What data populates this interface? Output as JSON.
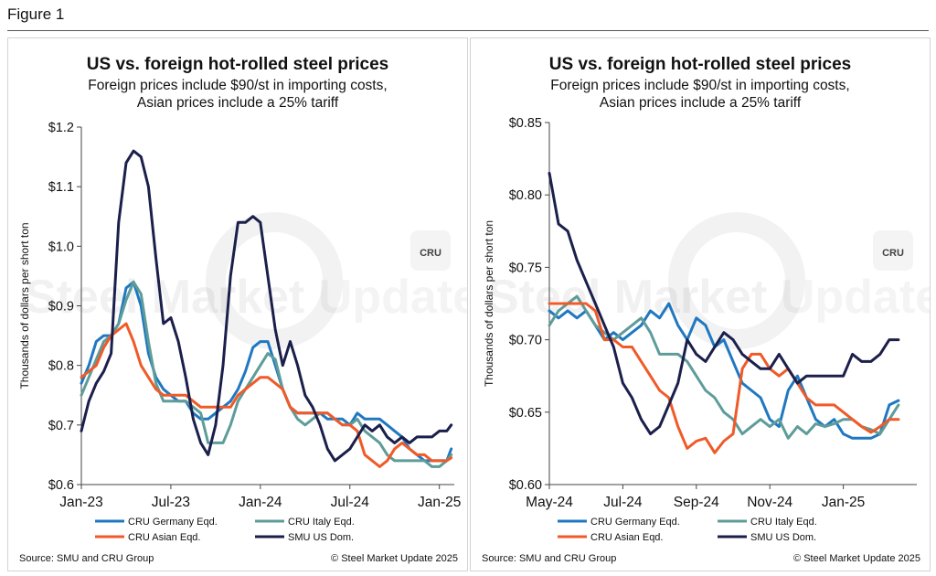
{
  "figure_label": "Figure 1",
  "watermark": {
    "bold": "Steel Market",
    "light": "Update",
    "logo": "CRU"
  },
  "colors": {
    "germany": "#1f78c1",
    "italy": "#5e9c9a",
    "asian": "#f05a28",
    "us": "#1b1f4b"
  },
  "chart_data": [
    {
      "type": "line",
      "title": "US vs. foreign hot-rolled steel prices",
      "subtitle": [
        "Foreign prices include $90/st in importing costs,",
        "Asian prices include a 25% tariff"
      ],
      "ylabel": "Thousands of dollars per short ton",
      "xlabel": "",
      "ylim": [
        0.6,
        1.2
      ],
      "yticks": [
        0.6,
        0.7,
        0.8,
        0.9,
        1.0,
        1.1,
        1.2
      ],
      "ytick_labels": [
        "$0.6",
        "$0.7",
        "$0.8",
        "$0.9",
        "$1.0",
        "$1.1",
        "$1.2"
      ],
      "xlim": [
        0,
        25
      ],
      "xticks": [
        0,
        6,
        12,
        18,
        24
      ],
      "xtick_labels": [
        "Jan-23",
        "Jul-23",
        "Jan-24",
        "Jul-24",
        "Jan-25"
      ],
      "legend_placement": "bottom",
      "source": "Source: SMU and CRU Group",
      "copyright": "© Steel Market Update 2025",
      "series": [
        {
          "name": "CRU Germany Eqd.",
          "key": "germany",
          "x": [
            0,
            0.5,
            1,
            1.5,
            2,
            2.5,
            3,
            3.5,
            4,
            4.5,
            5,
            5.5,
            6,
            6.5,
            7,
            7.5,
            8,
            8.5,
            9,
            9.5,
            10,
            10.5,
            11,
            11.5,
            12,
            12.5,
            13,
            13.5,
            14,
            14.5,
            15,
            15.5,
            16,
            16.5,
            17,
            17.5,
            18,
            18.5,
            19,
            19.5,
            20,
            20.5,
            21,
            21.5,
            22,
            22.5,
            23,
            23.5,
            24,
            24.5,
            24.8
          ],
          "y": [
            0.77,
            0.8,
            0.84,
            0.85,
            0.85,
            0.87,
            0.93,
            0.94,
            0.9,
            0.82,
            0.78,
            0.76,
            0.75,
            0.74,
            0.74,
            0.72,
            0.71,
            0.71,
            0.72,
            0.73,
            0.74,
            0.76,
            0.79,
            0.83,
            0.84,
            0.84,
            0.8,
            0.76,
            0.73,
            0.72,
            0.72,
            0.72,
            0.72,
            0.71,
            0.71,
            0.71,
            0.7,
            0.72,
            0.71,
            0.71,
            0.71,
            0.7,
            0.69,
            0.68,
            0.66,
            0.65,
            0.64,
            0.64,
            0.64,
            0.64,
            0.66
          ]
        },
        {
          "name": "CRU Italy Eqd.",
          "key": "italy",
          "x": [
            0,
            0.5,
            1,
            1.5,
            2,
            2.5,
            3,
            3.5,
            4,
            4.5,
            5,
            5.5,
            6,
            6.5,
            7,
            7.5,
            8,
            8.5,
            9,
            9.5,
            10,
            10.5,
            11,
            11.5,
            12,
            12.5,
            13,
            13.5,
            14,
            14.5,
            15,
            15.5,
            16,
            16.5,
            17,
            17.5,
            18,
            18.5,
            19,
            19.5,
            20,
            20.5,
            21,
            21.5,
            22,
            22.5,
            23,
            23.5,
            24,
            24.5,
            24.8
          ],
          "y": [
            0.75,
            0.78,
            0.81,
            0.84,
            0.85,
            0.87,
            0.91,
            0.94,
            0.92,
            0.84,
            0.77,
            0.74,
            0.74,
            0.74,
            0.74,
            0.73,
            0.72,
            0.67,
            0.67,
            0.67,
            0.7,
            0.74,
            0.76,
            0.78,
            0.8,
            0.82,
            0.81,
            0.76,
            0.73,
            0.71,
            0.7,
            0.71,
            0.72,
            0.72,
            0.71,
            0.7,
            0.7,
            0.71,
            0.69,
            0.68,
            0.67,
            0.65,
            0.64,
            0.64,
            0.64,
            0.64,
            0.64,
            0.63,
            0.63,
            0.64,
            0.65
          ]
        },
        {
          "name": "CRU Asian Eqd.",
          "key": "asian",
          "x": [
            0,
            0.5,
            1,
            1.5,
            2,
            2.5,
            3,
            3.5,
            4,
            4.5,
            5,
            5.5,
            6,
            6.5,
            7,
            7.5,
            8,
            8.5,
            9,
            9.5,
            10,
            10.5,
            11,
            11.5,
            12,
            12.5,
            13,
            13.5,
            14,
            14.5,
            15,
            15.5,
            16,
            16.5,
            17,
            17.5,
            18,
            18.5,
            19,
            19.5,
            20,
            20.5,
            21,
            21.5,
            22,
            22.5,
            23,
            23.5,
            24,
            24.5,
            24.8
          ],
          "y": [
            0.78,
            0.79,
            0.8,
            0.83,
            0.85,
            0.86,
            0.87,
            0.84,
            0.8,
            0.78,
            0.76,
            0.75,
            0.75,
            0.75,
            0.75,
            0.74,
            0.73,
            0.73,
            0.73,
            0.73,
            0.73,
            0.75,
            0.76,
            0.77,
            0.78,
            0.78,
            0.77,
            0.76,
            0.73,
            0.72,
            0.72,
            0.72,
            0.72,
            0.72,
            0.71,
            0.7,
            0.7,
            0.69,
            0.65,
            0.64,
            0.63,
            0.64,
            0.66,
            0.67,
            0.66,
            0.65,
            0.65,
            0.64,
            0.64,
            0.64,
            0.645
          ]
        },
        {
          "name": "SMU US Dom.",
          "key": "us",
          "x": [
            0,
            0.5,
            1,
            1.5,
            2,
            2.5,
            3,
            3.5,
            4,
            4.5,
            5,
            5.5,
            6,
            6.5,
            7,
            7.5,
            8,
            8.5,
            9,
            9.5,
            10,
            10.5,
            11,
            11.5,
            12,
            12.5,
            13,
            13.5,
            14,
            14.5,
            15,
            15.5,
            16,
            16.5,
            17,
            17.5,
            18,
            18.5,
            19,
            19.5,
            20,
            20.5,
            21,
            21.5,
            22,
            22.5,
            23,
            23.5,
            24,
            24.5,
            24.8
          ],
          "y": [
            0.69,
            0.74,
            0.77,
            0.79,
            0.82,
            1.04,
            1.14,
            1.16,
            1.15,
            1.1,
            0.98,
            0.87,
            0.88,
            0.84,
            0.78,
            0.71,
            0.67,
            0.65,
            0.7,
            0.8,
            0.95,
            1.04,
            1.04,
            1.05,
            1.04,
            0.95,
            0.86,
            0.8,
            0.84,
            0.8,
            0.75,
            0.73,
            0.7,
            0.66,
            0.64,
            0.65,
            0.66,
            0.68,
            0.7,
            0.69,
            0.7,
            0.68,
            0.67,
            0.68,
            0.67,
            0.68,
            0.68,
            0.68,
            0.69,
            0.69,
            0.7
          ]
        }
      ]
    },
    {
      "type": "line",
      "title": "US vs. foreign hot-rolled steel prices",
      "subtitle": [
        "Foreign prices include $90/st in importing costs,",
        "Asian prices include a 25% tariff"
      ],
      "ylabel": "Thousands of dollars per short ton",
      "xlabel": "",
      "ylim": [
        0.6,
        0.85
      ],
      "yticks": [
        0.6,
        0.65,
        0.7,
        0.75,
        0.8,
        0.85
      ],
      "ytick_labels": [
        "$0.60",
        "$0.65",
        "$0.70",
        "$0.75",
        "$0.80",
        "$0.85"
      ],
      "xlim": [
        0,
        10
      ],
      "xticks": [
        0,
        2,
        4,
        6,
        8
      ],
      "xtick_labels": [
        "May-24",
        "Jul-24",
        "Sep-24",
        "Nov-24",
        "Jan-25"
      ],
      "legend_placement": "bottom",
      "source": "Source: SMU and CRU Group",
      "copyright": "© Steel Market Update 2025",
      "series": [
        {
          "name": "CRU Germany Eqd.",
          "key": "germany",
          "x": [
            0,
            0.25,
            0.5,
            0.75,
            1,
            1.25,
            1.5,
            1.75,
            2,
            2.25,
            2.5,
            2.75,
            3,
            3.25,
            3.5,
            3.75,
            4,
            4.25,
            4.5,
            4.75,
            5,
            5.25,
            5.5,
            5.75,
            6,
            6.25,
            6.5,
            6.75,
            7,
            7.25,
            7.5,
            7.75,
            8,
            8.25,
            8.5,
            8.75,
            9,
            9.25,
            9.5
          ],
          "y": [
            0.72,
            0.715,
            0.72,
            0.715,
            0.72,
            0.71,
            0.7,
            0.705,
            0.7,
            0.705,
            0.71,
            0.72,
            0.715,
            0.725,
            0.71,
            0.7,
            0.715,
            0.71,
            0.695,
            0.7,
            0.685,
            0.67,
            0.665,
            0.66,
            0.645,
            0.64,
            0.665,
            0.675,
            0.66,
            0.645,
            0.64,
            0.645,
            0.635,
            0.632,
            0.632,
            0.632,
            0.635,
            0.655,
            0.658
          ]
        },
        {
          "name": "CRU Italy Eqd.",
          "key": "italy",
          "x": [
            0,
            0.25,
            0.5,
            0.75,
            1,
            1.25,
            1.5,
            1.75,
            2,
            2.25,
            2.5,
            2.75,
            3,
            3.25,
            3.5,
            3.75,
            4,
            4.25,
            4.5,
            4.75,
            5,
            5.25,
            5.5,
            5.75,
            6,
            6.25,
            6.5,
            6.75,
            7,
            7.25,
            7.5,
            7.75,
            8,
            8.25,
            8.5,
            8.75,
            9,
            9.25,
            9.5
          ],
          "y": [
            0.71,
            0.72,
            0.725,
            0.73,
            0.72,
            0.71,
            0.705,
            0.7,
            0.705,
            0.71,
            0.715,
            0.705,
            0.69,
            0.69,
            0.69,
            0.685,
            0.675,
            0.665,
            0.66,
            0.65,
            0.645,
            0.635,
            0.64,
            0.645,
            0.64,
            0.645,
            0.632,
            0.64,
            0.635,
            0.642,
            0.64,
            0.642,
            0.645,
            0.645,
            0.64,
            0.638,
            0.635,
            0.645,
            0.655
          ]
        },
        {
          "name": "CRU Asian Eqd.",
          "key": "asian",
          "x": [
            0,
            0.25,
            0.5,
            0.75,
            1,
            1.25,
            1.5,
            1.75,
            2,
            2.25,
            2.5,
            2.75,
            3,
            3.25,
            3.5,
            3.75,
            4,
            4.25,
            4.5,
            4.75,
            5,
            5.25,
            5.5,
            5.75,
            6,
            6.25,
            6.5,
            6.75,
            7,
            7.25,
            7.5,
            7.75,
            8,
            8.25,
            8.5,
            8.75,
            9,
            9.25,
            9.5
          ],
          "y": [
            0.725,
            0.725,
            0.725,
            0.725,
            0.725,
            0.72,
            0.7,
            0.7,
            0.695,
            0.695,
            0.685,
            0.675,
            0.665,
            0.66,
            0.64,
            0.625,
            0.63,
            0.632,
            0.622,
            0.63,
            0.635,
            0.68,
            0.69,
            0.69,
            0.68,
            0.675,
            0.68,
            0.67,
            0.66,
            0.655,
            0.655,
            0.655,
            0.65,
            0.645,
            0.64,
            0.636,
            0.64,
            0.645,
            0.645
          ]
        },
        {
          "name": "SMU US Dom.",
          "key": "us",
          "x": [
            0,
            0.25,
            0.5,
            0.75,
            1,
            1.25,
            1.5,
            1.75,
            2,
            2.25,
            2.5,
            2.75,
            3,
            3.25,
            3.5,
            3.75,
            4,
            4.25,
            4.5,
            4.75,
            5,
            5.25,
            5.5,
            5.75,
            6,
            6.25,
            6.5,
            6.75,
            7,
            7.25,
            7.5,
            7.75,
            8,
            8.25,
            8.5,
            8.75,
            9,
            9.25,
            9.5
          ],
          "y": [
            0.815,
            0.78,
            0.775,
            0.755,
            0.74,
            0.725,
            0.71,
            0.695,
            0.67,
            0.66,
            0.645,
            0.635,
            0.64,
            0.655,
            0.67,
            0.7,
            0.69,
            0.685,
            0.695,
            0.705,
            0.7,
            0.69,
            0.685,
            0.68,
            0.68,
            0.69,
            0.68,
            0.67,
            0.675,
            0.675,
            0.675,
            0.675,
            0.675,
            0.69,
            0.685,
            0.685,
            0.69,
            0.7,
            0.7
          ]
        }
      ]
    }
  ]
}
